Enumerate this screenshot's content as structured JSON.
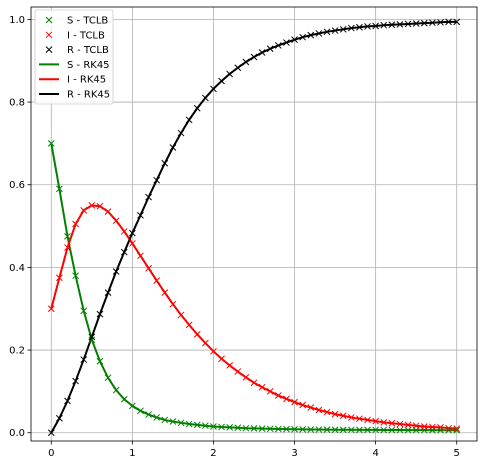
{
  "chart_data": {
    "type": "line",
    "title": "",
    "xlabel": "",
    "ylabel": "",
    "xlim": [
      -0.25,
      5.25
    ],
    "ylim": [
      -0.02,
      1.03
    ],
    "xticks": [
      0,
      1,
      2,
      3,
      4,
      5
    ],
    "yticks": [
      0.0,
      0.2,
      0.4,
      0.6,
      0.8,
      1.0
    ],
    "xtick_labels": [
      "0",
      "1",
      "2",
      "3",
      "4",
      "5"
    ],
    "ytick_labels": [
      "0.0",
      "0.2",
      "0.4",
      "0.6",
      "0.8",
      "1.0"
    ],
    "grid": true,
    "legend_position": "top-left",
    "x": [
      0.0,
      0.1,
      0.2,
      0.3,
      0.4,
      0.5,
      0.6,
      0.7,
      0.8,
      0.9,
      1.0,
      1.1,
      1.2,
      1.3,
      1.4,
      1.5,
      1.6,
      1.7,
      1.8,
      1.9,
      2.0,
      2.1,
      2.2,
      2.3,
      2.4,
      2.5,
      2.6,
      2.7,
      2.8,
      2.9,
      3.0,
      3.1,
      3.2,
      3.3,
      3.4,
      3.5,
      3.6,
      3.7,
      3.8,
      3.9,
      4.0,
      4.1,
      4.2,
      4.3,
      4.4,
      4.5,
      4.6,
      4.7,
      4.8,
      4.9,
      5.0
    ],
    "series": [
      {
        "name": "S - TCLB",
        "kind": "marker",
        "marker": "x",
        "color": "#008000",
        "values": [
          0.7,
          0.59,
          0.475,
          0.38,
          0.295,
          0.225,
          0.173,
          0.133,
          0.103,
          0.081,
          0.065,
          0.053,
          0.044,
          0.037,
          0.031,
          0.027,
          0.024,
          0.021,
          0.019,
          0.017,
          0.015,
          0.014,
          0.013,
          0.012,
          0.011,
          0.0105,
          0.01,
          0.0095,
          0.009,
          0.0087,
          0.0084,
          0.0081,
          0.0079,
          0.0077,
          0.0075,
          0.0073,
          0.0072,
          0.0071,
          0.007,
          0.0069,
          0.0068,
          0.0067,
          0.0066,
          0.0065,
          0.0064,
          0.0063,
          0.0062,
          0.0061,
          0.006,
          0.006,
          0.006
        ]
      },
      {
        "name": "I - TCLB",
        "kind": "marker",
        "marker": "x",
        "color": "#ff0000",
        "values": [
          0.3,
          0.375,
          0.448,
          0.505,
          0.538,
          0.55,
          0.548,
          0.535,
          0.513,
          0.487,
          0.458,
          0.428,
          0.398,
          0.368,
          0.339,
          0.311,
          0.285,
          0.261,
          0.238,
          0.217,
          0.197,
          0.179,
          0.163,
          0.148,
          0.134,
          0.121,
          0.11,
          0.1,
          0.09,
          0.082,
          0.074,
          0.067,
          0.061,
          0.055,
          0.05,
          0.045,
          0.041,
          0.037,
          0.034,
          0.031,
          0.028,
          0.025,
          0.023,
          0.021,
          0.019,
          0.017,
          0.015,
          0.014,
          0.013,
          0.011,
          0.01
        ]
      },
      {
        "name": "R - TCLB",
        "kind": "marker",
        "marker": "x",
        "color": "#000000",
        "values": [
          0.0,
          0.035,
          0.077,
          0.125,
          0.177,
          0.232,
          0.287,
          0.339,
          0.39,
          0.437,
          0.483,
          0.526,
          0.57,
          0.611,
          0.652,
          0.69,
          0.725,
          0.757,
          0.785,
          0.81,
          0.832,
          0.851,
          0.868,
          0.883,
          0.897,
          0.909,
          0.92,
          0.929,
          0.937,
          0.944,
          0.951,
          0.957,
          0.962,
          0.966,
          0.97,
          0.973,
          0.976,
          0.979,
          0.981,
          0.983,
          0.984,
          0.986,
          0.987,
          0.988,
          0.989,
          0.99,
          0.991,
          0.992,
          0.993,
          0.994,
          0.994
        ]
      },
      {
        "name": "S - RK45",
        "kind": "line",
        "color": "#008000",
        "values": [
          0.7,
          0.59,
          0.475,
          0.38,
          0.295,
          0.225,
          0.173,
          0.133,
          0.103,
          0.081,
          0.065,
          0.053,
          0.044,
          0.037,
          0.031,
          0.027,
          0.024,
          0.021,
          0.019,
          0.017,
          0.015,
          0.014,
          0.013,
          0.012,
          0.011,
          0.0105,
          0.01,
          0.0095,
          0.009,
          0.0087,
          0.0084,
          0.0081,
          0.0079,
          0.0077,
          0.0075,
          0.0073,
          0.0072,
          0.0071,
          0.007,
          0.0069,
          0.0068,
          0.0067,
          0.0066,
          0.0065,
          0.0064,
          0.0063,
          0.0062,
          0.0061,
          0.006,
          0.006,
          0.006
        ]
      },
      {
        "name": "I - RK45",
        "kind": "line",
        "color": "#ff0000",
        "values": [
          0.3,
          0.375,
          0.448,
          0.505,
          0.538,
          0.55,
          0.548,
          0.535,
          0.513,
          0.487,
          0.458,
          0.428,
          0.398,
          0.368,
          0.339,
          0.311,
          0.285,
          0.261,
          0.238,
          0.217,
          0.197,
          0.179,
          0.163,
          0.148,
          0.134,
          0.121,
          0.11,
          0.1,
          0.09,
          0.082,
          0.074,
          0.067,
          0.061,
          0.055,
          0.05,
          0.045,
          0.041,
          0.037,
          0.034,
          0.031,
          0.028,
          0.025,
          0.023,
          0.021,
          0.019,
          0.017,
          0.015,
          0.014,
          0.013,
          0.011,
          0.01
        ]
      },
      {
        "name": "R - RK45",
        "kind": "line",
        "color": "#000000",
        "values": [
          0.0,
          0.035,
          0.077,
          0.125,
          0.177,
          0.232,
          0.287,
          0.339,
          0.39,
          0.437,
          0.483,
          0.526,
          0.57,
          0.611,
          0.652,
          0.69,
          0.725,
          0.757,
          0.785,
          0.81,
          0.832,
          0.851,
          0.868,
          0.883,
          0.897,
          0.909,
          0.92,
          0.929,
          0.937,
          0.944,
          0.951,
          0.957,
          0.962,
          0.966,
          0.97,
          0.973,
          0.976,
          0.979,
          0.981,
          0.983,
          0.984,
          0.986,
          0.987,
          0.988,
          0.989,
          0.99,
          0.991,
          0.992,
          0.993,
          0.994,
          0.994
        ]
      }
    ]
  }
}
